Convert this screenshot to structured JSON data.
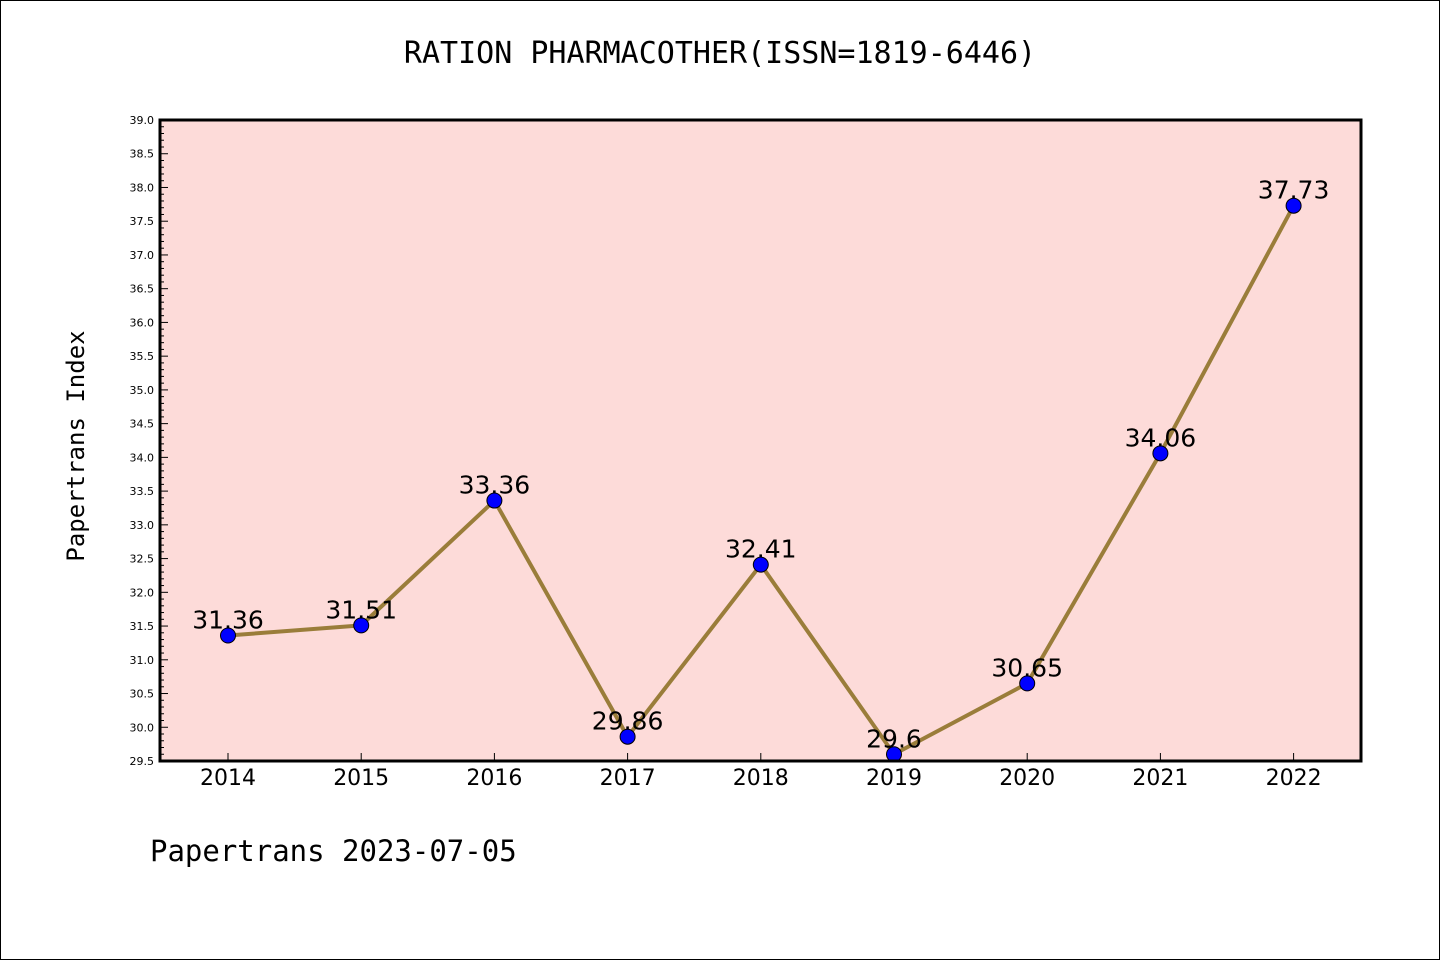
{
  "title": "RATION PHARMACOTHER(ISSN=1819-6446)",
  "footer": "Papertrans 2023-07-05",
  "colors": {
    "plot_background": "#fddbd9",
    "line": "#9a7d3a",
    "marker": "#0000ff"
  },
  "chart_data": {
    "type": "line",
    "title": "RATION PHARMACOTHER(ISSN=1819-6446)",
    "xlabel": "",
    "ylabel": "Papertrans Index",
    "categories": [
      "2014",
      "2015",
      "2016",
      "2017",
      "2018",
      "2019",
      "2020",
      "2021",
      "2022"
    ],
    "series": [
      {
        "values": [
          31.36,
          31.51,
          33.36,
          29.86,
          32.41,
          29.6,
          30.65,
          34.06,
          37.73
        ],
        "labels": [
          "31.36",
          "31.51",
          "33.36",
          "29.86",
          "32.41",
          "29.6",
          "30.65",
          "34.06",
          "37.73"
        ]
      }
    ],
    "ylim": [
      29.5,
      39.0
    ],
    "yticks": [
      "29.5",
      "30.0",
      "30.5",
      "31.0",
      "31.5",
      "32.0",
      "32.5",
      "33.0",
      "33.5",
      "34.0",
      "34.5",
      "35.0",
      "35.5",
      "36.0",
      "36.5",
      "37.0",
      "37.5",
      "38.0",
      "38.5",
      "39.0"
    ],
    "grid": false,
    "legend": "none"
  }
}
